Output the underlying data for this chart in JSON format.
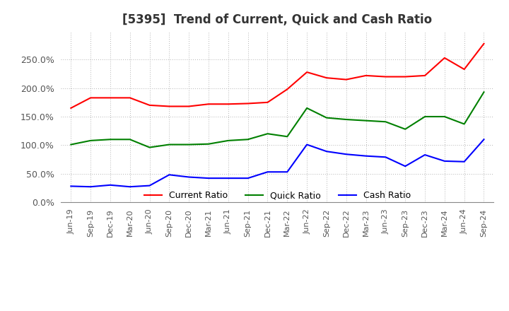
{
  "title": "[5395]  Trend of Current, Quick and Cash Ratio",
  "labels": [
    "Jun-19",
    "Sep-19",
    "Dec-19",
    "Mar-20",
    "Jun-20",
    "Sep-20",
    "Dec-20",
    "Mar-21",
    "Jun-21",
    "Sep-21",
    "Dec-21",
    "Mar-22",
    "Jun-22",
    "Sep-22",
    "Dec-22",
    "Mar-23",
    "Jun-23",
    "Sep-23",
    "Dec-23",
    "Mar-24",
    "Jun-24",
    "Sep-24"
  ],
  "current_ratio": [
    165,
    183,
    183,
    183,
    170,
    168,
    168,
    172,
    172,
    173,
    175,
    198,
    228,
    218,
    215,
    222,
    220,
    220,
    222,
    253,
    233,
    278
  ],
  "quick_ratio": [
    101,
    108,
    110,
    110,
    96,
    101,
    101,
    102,
    108,
    110,
    120,
    115,
    165,
    148,
    145,
    143,
    141,
    128,
    150,
    150,
    137,
    193
  ],
  "cash_ratio": [
    28,
    27,
    30,
    27,
    29,
    48,
    44,
    42,
    42,
    42,
    53,
    53,
    101,
    89,
    84,
    81,
    79,
    63,
    83,
    72,
    71,
    110
  ],
  "current_color": "#FF0000",
  "quick_color": "#008000",
  "cash_color": "#0000FF",
  "ylim": [
    0,
    300
  ],
  "yticks": [
    0,
    50,
    100,
    150,
    200,
    250
  ],
  "background_color": "#FFFFFF",
  "grid_color": "#AAAAAA",
  "tick_color": "#555555",
  "legend_labels": [
    "Current Ratio",
    "Quick Ratio",
    "Cash Ratio"
  ],
  "title_fontsize": 12,
  "tick_fontsize": 8,
  "ytick_fontsize": 9
}
